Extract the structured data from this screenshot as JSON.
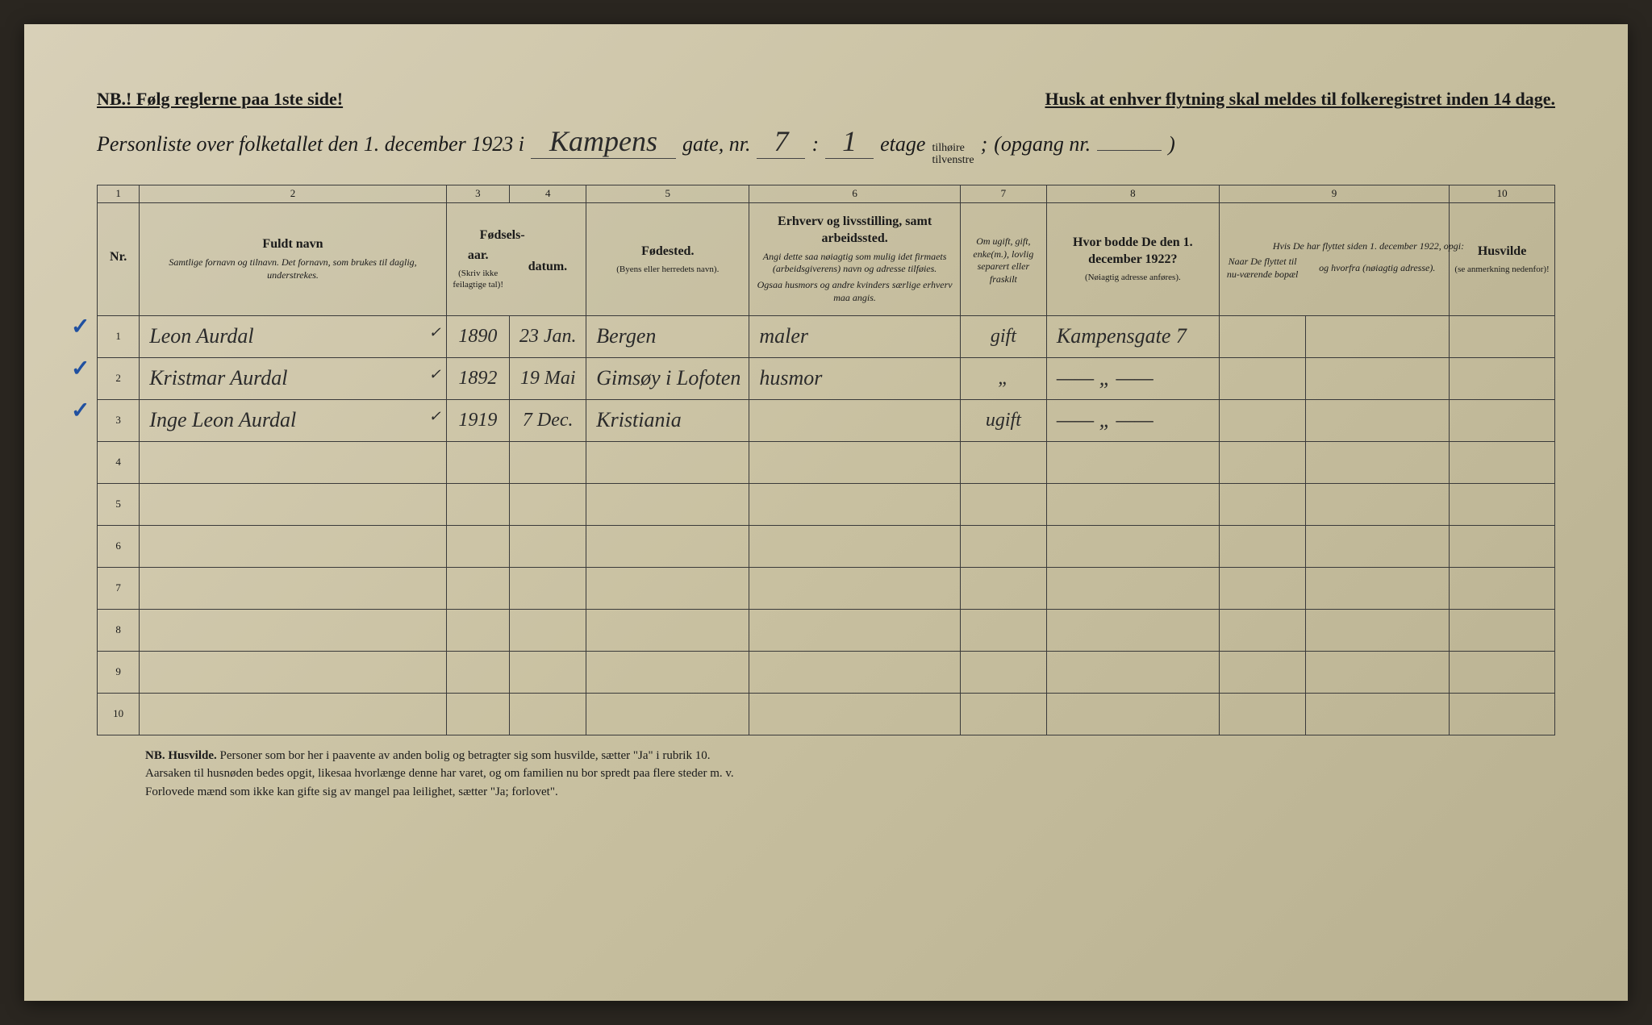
{
  "top": {
    "left": "NB.! Følg reglerne paa 1ste side!",
    "right": "Husk at enhver flytning skal meldes til folkeregistret inden 14 dage."
  },
  "title": {
    "prefix": "Personliste over folketallet den 1. december 1923 i",
    "street": "Kampens",
    "gate_label": "gate, nr.",
    "gate_nr": "7",
    "colon": ":",
    "etage_nr": "1",
    "etage_label": "etage",
    "side_small_top": "tilhøire",
    "side_small_bot": "tilvenstre",
    "semicolon": ";",
    "opgang_label": "(opgang nr.",
    "opgang_nr": "",
    "closing": ")"
  },
  "columns": {
    "nums": [
      "1",
      "2",
      "3",
      "4",
      "5",
      "6",
      "7",
      "8",
      "9",
      "10"
    ],
    "h1": {
      "title": "Nr."
    },
    "h2": {
      "title": "Fuldt navn",
      "sub": "Samtlige fornavn og tilnavn. Det fornavn, som brukes til daglig, understrekes."
    },
    "h3_4_title": "Fødsels-",
    "h3": {
      "title": "aar.",
      "parens": "(Skriv ikke feilagtige tal)!"
    },
    "h4": {
      "title": "datum."
    },
    "h5": {
      "title": "Fødested.",
      "parens": "(Byens eller herredets navn)."
    },
    "h6": {
      "title": "Erhverv og livsstilling, samt arbeidssted.",
      "sub": "Angi dette saa nøiagtig som mulig idet firmaets (arbeidsgiverens) navn og adresse tilføies.",
      "sub2": "Ogsaa husmors og andre kvinders særlige erhverv maa angis."
    },
    "h7": {
      "sub": "Om ugift, gift, enke(m.), lovlig separert eller fraskilt"
    },
    "h8": {
      "title": "Hvor bodde De den 1. december 1922?",
      "parens": "(Nøiagtig adresse anføres)."
    },
    "h9_title": "Hvis De har flyttet siden 1. december 1922, opgi:",
    "h9a": {
      "sub": "Naar De flyttet til nu-værende bopæl"
    },
    "h9b": {
      "sub": "og hvorfra (nøiagtig adresse)."
    },
    "h10": {
      "title": "Husvilde",
      "parens": "(se anmerkning nedenfor)!"
    }
  },
  "rows": [
    {
      "nr": "1",
      "name": "Leon Aurdal",
      "check": "✓",
      "aar": "1890",
      "datum": "23 Jan.",
      "fodested": "Bergen",
      "erhverv": "maler",
      "status": "gift",
      "bodde": "Kampensgate 7",
      "naar": "",
      "hvorfra": "",
      "husvilde": ""
    },
    {
      "nr": "2",
      "name": "Kristmar Aurdal",
      "check": "✓",
      "aar": "1892",
      "datum": "19 Mai",
      "fodested": "Gimsøy i Lofoten",
      "erhverv": "husmor",
      "status": "„",
      "bodde": "—— „ ——",
      "naar": "",
      "hvorfra": "",
      "husvilde": ""
    },
    {
      "nr": "3",
      "name": "Inge Leon Aurdal",
      "check": "✓",
      "aar": "1919",
      "datum": "7 Dec.",
      "fodested": "Kristiania",
      "erhverv": "",
      "status": "ugift",
      "bodde": "—— „ ——",
      "naar": "",
      "hvorfra": "",
      "husvilde": ""
    },
    {
      "nr": "4"
    },
    {
      "nr": "5"
    },
    {
      "nr": "6"
    },
    {
      "nr": "7"
    },
    {
      "nr": "8"
    },
    {
      "nr": "9"
    },
    {
      "nr": "10"
    }
  ],
  "footer": {
    "line1_bold": "NB.   Husvilde.",
    "line1": "Personer som bor her i paavente av anden bolig og betragter sig som husvilde, sætter \"Ja\" i rubrik 10.",
    "line2": "Aarsaken til husnøden bedes opgit, likesaa hvorlænge denne har varet, og om familien nu bor spredt paa flere steder m. v.",
    "line3": "Forlovede mænd som ikke kan gifte sig av mangel paa leilighet, sætter \"Ja; forlovet\"."
  },
  "colors": {
    "paper": "#d0c8a8",
    "ink": "#1a1a1a",
    "hand_ink": "#2a2a2a",
    "check_blue": "#2050a0",
    "border": "#3a3a3a"
  }
}
